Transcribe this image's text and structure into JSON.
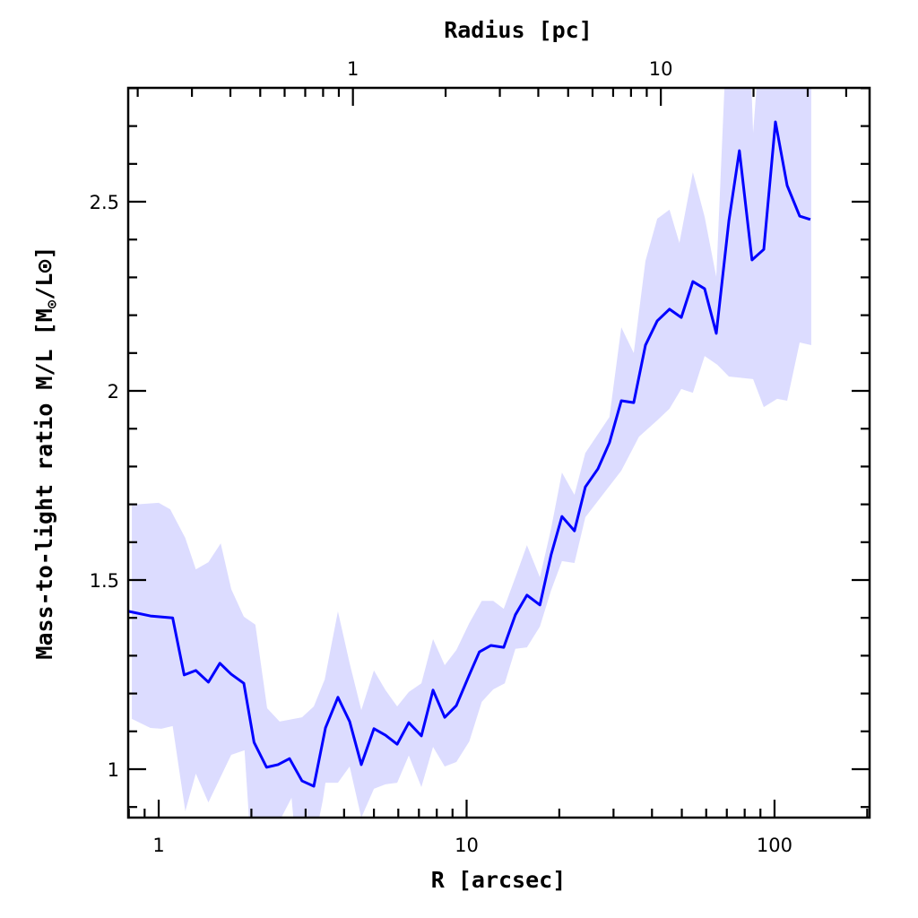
{
  "chart_data": {
    "type": "line",
    "title": "",
    "xlabel": "R [arcsec]",
    "ylabel_main": "Mass-to-light ratio M/L [M",
    "ylabel_sub": "⊙",
    "ylabel_end": "/L⊙]",
    "top_xlabel": "Radius [pc]",
    "x_scale": "log",
    "xlim": [
      0.796,
      203.6
    ],
    "ylim": [
      0.872,
      2.801
    ],
    "pc_per_arcsec": 0.234,
    "x_ticks": [
      {
        "value": 1,
        "label": "1"
      },
      {
        "value": 10,
        "label": "10"
      },
      {
        "value": 100,
        "label": "100"
      }
    ],
    "top_ticks": [
      {
        "value": 1,
        "label": "1"
      },
      {
        "value": 10,
        "label": "10"
      }
    ],
    "y_ticks": [
      {
        "value": 1,
        "label": "1"
      },
      {
        "value": 1.5,
        "label": "1.5"
      },
      {
        "value": 2,
        "label": "2"
      },
      {
        "value": 2.5,
        "label": "2.5"
      }
    ],
    "colors": {
      "line": "#0000ff",
      "band": "#dcdcff",
      "axis": "#000000"
    },
    "series": [
      {
        "name": "M/L profile",
        "x": [
          0.8,
          0.94,
          1.11,
          1.21,
          1.32,
          1.45,
          1.58,
          1.72,
          1.89,
          2.04,
          2.24,
          2.44,
          2.66,
          2.92,
          3.19,
          3.48,
          3.82,
          4.17,
          4.55,
          5.0,
          5.45,
          5.95,
          6.49,
          7.13,
          7.78,
          8.49,
          9.26,
          10.2,
          11.0,
          12.0,
          13.2,
          14.4,
          15.7,
          17.3,
          18.8,
          20.4,
          22.4,
          24.3,
          26.7,
          29.1,
          31.8,
          34.9,
          38.1,
          41.6,
          45.6,
          49.8,
          54.3,
          59.3,
          64.7,
          71.1,
          76.9,
          84.5,
          92.3,
          100.7,
          109.9,
          120.7,
          130.7
        ],
        "y": [
          1.417,
          1.405,
          1.4,
          1.249,
          1.261,
          1.23,
          1.28,
          1.251,
          1.227,
          1.071,
          1.005,
          1.012,
          1.028,
          0.969,
          0.955,
          1.109,
          1.19,
          1.126,
          1.012,
          1.107,
          1.09,
          1.066,
          1.123,
          1.088,
          1.209,
          1.137,
          1.168,
          1.249,
          1.31,
          1.327,
          1.322,
          1.408,
          1.46,
          1.434,
          1.566,
          1.668,
          1.63,
          1.746,
          1.794,
          1.863,
          1.974,
          1.969,
          2.121,
          2.185,
          2.216,
          2.194,
          2.289,
          2.27,
          2.152,
          2.45,
          2.635,
          2.346,
          2.374,
          2.711,
          2.543,
          2.462,
          2.453
        ]
      }
    ],
    "band_upper": {
      "x": [
        0.818,
        1.0,
        1.09,
        1.22,
        1.32,
        1.45,
        1.59,
        1.72,
        1.89,
        2.06,
        2.25,
        2.47,
        2.92,
        3.19,
        3.46,
        3.82,
        4.17,
        4.55,
        5.0,
        5.45,
        5.95,
        6.49,
        7.13,
        7.78,
        8.49,
        9.26,
        10.2,
        11.2,
        12.2,
        13.2,
        14.4,
        15.7,
        17.3,
        18.8,
        20.4,
        22.4,
        24.3,
        29.1,
        31.8,
        34.9,
        38.1,
        41.6,
        45.6,
        49.1,
        54.3,
        59.3,
        64.7,
        69.6,
        83.4,
        85.2,
        89.3,
        131.6
      ],
      "y": [
        1.699,
        1.704,
        1.687,
        1.611,
        1.528,
        1.547,
        1.597,
        1.476,
        1.403,
        1.382,
        1.161,
        1.126,
        1.137,
        1.166,
        1.237,
        1.417,
        1.28,
        1.156,
        1.261,
        1.209,
        1.166,
        1.204,
        1.227,
        1.344,
        1.275,
        1.315,
        1.386,
        1.445,
        1.445,
        1.424,
        1.507,
        1.592,
        1.507,
        1.635,
        1.784,
        1.725,
        1.836,
        1.931,
        2.168,
        2.1,
        2.344,
        2.455,
        2.479,
        2.391,
        2.578,
        2.46,
        2.301,
        2.9,
        2.9,
        2.682,
        2.9,
        2.9
      ]
    },
    "band_lower": {
      "x": [
        0.818,
        0.94,
        1.02,
        1.11,
        1.22,
        1.32,
        1.45,
        1.72,
        1.9,
        1.99,
        2.25,
        2.7,
        2.79,
        3.19,
        3.41,
        3.48,
        3.82,
        4.17,
        4.55,
        5.0,
        5.45,
        5.95,
        6.49,
        7.13,
        7.78,
        8.49,
        9.26,
        10.2,
        11.2,
        12.2,
        13.3,
        14.4,
        15.7,
        17.3,
        18.8,
        20.4,
        22.4,
        24.3,
        26.7,
        31.8,
        36.3,
        41.6,
        45.6,
        49.8,
        54.3,
        59.3,
        65.2,
        71.1,
        85.2,
        92.3,
        102,
        109.9,
        120.7,
        131.6
      ],
      "y": [
        1.133,
        1.109,
        1.107,
        1.114,
        0.889,
        0.988,
        0.912,
        1.038,
        1.05,
        0.8,
        0.8,
        0.924,
        0.8,
        0.8,
        0.917,
        0.964,
        0.964,
        1.007,
        0.872,
        0.948,
        0.96,
        0.964,
        1.036,
        0.953,
        1.059,
        1.007,
        1.019,
        1.073,
        1.178,
        1.211,
        1.227,
        1.318,
        1.322,
        1.377,
        1.472,
        1.55,
        1.545,
        1.666,
        1.709,
        1.789,
        1.879,
        1.922,
        1.953,
        2.005,
        1.995,
        2.092,
        2.069,
        2.038,
        2.031,
        1.957,
        1.979,
        1.974,
        2.128,
        2.121
      ]
    }
  }
}
